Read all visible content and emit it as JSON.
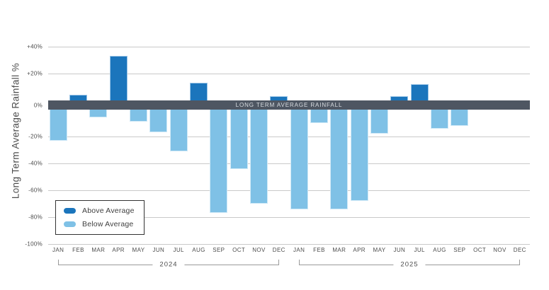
{
  "chart_data": {
    "type": "bar",
    "title": "",
    "ylabel": "Long Term Average Rainfall %",
    "xlabel": "",
    "ylim": [
      -100,
      40
    ],
    "grid": true,
    "legend_position": "bottom-left",
    "y_ticks": [
      {
        "value": 40,
        "label": "+40%"
      },
      {
        "value": 20,
        "label": "+20%"
      },
      {
        "value": 0,
        "label": "0%"
      },
      {
        "value": -20,
        "label": "-20%"
      },
      {
        "value": -40,
        "label": "-40%"
      },
      {
        "value": -60,
        "label": "-60%"
      },
      {
        "value": -80,
        "label": "-80%"
      },
      {
        "value": -100,
        "label": "-100%"
      }
    ],
    "zero_band": {
      "label": "LONG TERM AVERAGE RAINFALL"
    },
    "categories": [
      "JAN",
      "FEB",
      "MAR",
      "APR",
      "MAY",
      "JUN",
      "JUL",
      "AUG",
      "SEP",
      "OCT",
      "NOV",
      "DEC",
      "JAN",
      "FEB",
      "MAR",
      "APR",
      "MAY",
      "JUN",
      "JUL",
      "AUG",
      "SEP",
      "OCT",
      "NOV",
      "DEC"
    ],
    "values": [
      -23,
      4,
      -6,
      33,
      -9,
      -17,
      -31,
      13,
      -77,
      -44,
      -70,
      3,
      -74,
      -10,
      -74,
      -68,
      -18,
      3,
      12,
      -14,
      -12,
      null,
      null,
      null
    ],
    "year_groups": [
      {
        "label": "2024",
        "start_index": 0,
        "end_index": 11
      },
      {
        "label": "2025",
        "start_index": 12,
        "end_index": 23
      }
    ],
    "legend": [
      {
        "key": "above",
        "label": "Above Average",
        "color": "#1b75bc"
      },
      {
        "key": "below",
        "label": "Below Average",
        "color": "#7fc1e6"
      }
    ],
    "colors": {
      "above": "#1b75bc",
      "below": "#7fc1e6",
      "band": "#4e5662",
      "gridline": "#c9c9c9"
    }
  }
}
